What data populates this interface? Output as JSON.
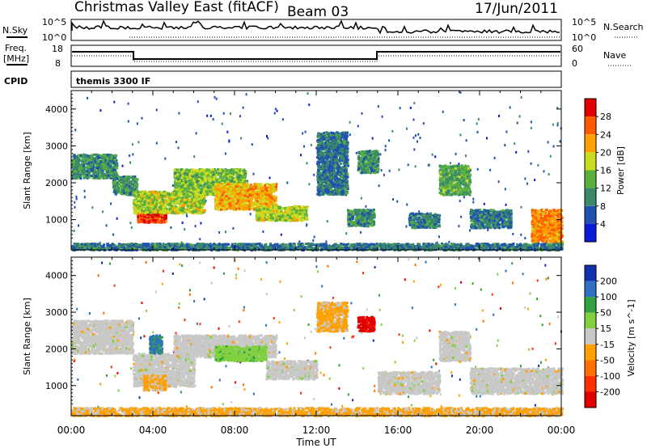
{
  "header": {
    "station": "Christmas Valley East (fitACF)",
    "beam": "Beam 03",
    "date": "17/Jun/2011"
  },
  "noise_panel": {
    "left_label": "N.Sky",
    "left_ticks": [
      "10^5",
      "10^0"
    ],
    "right_label": "N.Search",
    "right_ticks": [
      "10^5",
      "10^0"
    ]
  },
  "freq_panel": {
    "left_label_1": "Freq.",
    "left_label_2": "[MHz]",
    "left_ticks": [
      "18",
      "8"
    ],
    "right_label": "Nave",
    "right_ticks": [
      "60",
      "0"
    ]
  },
  "cpid": {
    "label": "CPID",
    "text": "themis 3300 IF"
  },
  "colors": {
    "power_scale": [
      "#0a18d8",
      "#2050b0",
      "#3a8a6a",
      "#58b040",
      "#c8dc20",
      "#ffa000",
      "#ff5a00",
      "#e00000"
    ],
    "velocity_scale": [
      "#1030b0",
      "#3070c0",
      "#30a040",
      "#80d040",
      "#c8c8c8",
      "#ffa000",
      "#ff7000",
      "#ff3000",
      "#e00000"
    ]
  },
  "chart_data": [
    {
      "type": "heatmap",
      "panel": "power",
      "ylabel": "Slant Range [km]",
      "yticks": [
        "1000",
        "2000",
        "3000",
        "4000"
      ],
      "ylim": [
        180,
        4500
      ],
      "xlim": [
        0,
        24
      ],
      "colorbar_label": "Power [dB]",
      "colorbar_ticks": [
        "4",
        "8",
        "12",
        "16",
        "20",
        "24",
        "28"
      ],
      "colorbar_range": [
        0,
        30
      ],
      "features": [
        {
          "t0": 0.0,
          "t1": 2.2,
          "r0": 2150,
          "r1": 2800,
          "value": 10
        },
        {
          "t0": 2.0,
          "t1": 3.2,
          "r0": 1700,
          "r1": 2200,
          "value": 10
        },
        {
          "t0": 3.2,
          "t1": 4.6,
          "r0": 950,
          "r1": 1300,
          "value": 26
        },
        {
          "t0": 3.0,
          "t1": 6.5,
          "r0": 1200,
          "r1": 1800,
          "value": 16
        },
        {
          "t0": 5.0,
          "t1": 8.5,
          "r0": 1700,
          "r1": 2400,
          "value": 14
        },
        {
          "t0": 7.0,
          "t1": 10.0,
          "r0": 1300,
          "r1": 2000,
          "value": 20
        },
        {
          "t0": 9.0,
          "t1": 11.5,
          "r0": 1000,
          "r1": 1400,
          "value": 16
        },
        {
          "t0": 12.0,
          "t1": 13.5,
          "r0": 1700,
          "r1": 3400,
          "value": 8
        },
        {
          "t0": 13.5,
          "t1": 14.8,
          "r0": 850,
          "r1": 1300,
          "value": 10
        },
        {
          "t0": 14.0,
          "t1": 15.0,
          "r0": 2300,
          "r1": 2900,
          "value": 10
        },
        {
          "t0": 16.5,
          "t1": 18.0,
          "r0": 800,
          "r1": 1200,
          "value": 9
        },
        {
          "t0": 18.0,
          "t1": 19.5,
          "r0": 1700,
          "r1": 2500,
          "value": 12
        },
        {
          "t0": 19.5,
          "t1": 21.5,
          "r0": 800,
          "r1": 1300,
          "value": 8
        },
        {
          "t0": 22.5,
          "t1": 24.0,
          "r0": 400,
          "r1": 1300,
          "value": 22
        },
        {
          "t0": 0.0,
          "t1": 24.0,
          "r0": 200,
          "r1": 380,
          "value": 8
        }
      ]
    },
    {
      "type": "heatmap",
      "panel": "velocity",
      "ylabel": "Slant Range [km]",
      "yticks": [
        "1000",
        "2000",
        "3000",
        "4000"
      ],
      "ylim": [
        180,
        4500
      ],
      "xlim": [
        0,
        24
      ],
      "xticks": [
        "00:00",
        "04:00",
        "08:00",
        "12:00",
        "16:00",
        "20:00",
        "00:00"
      ],
      "xlabel": "Time UT",
      "colorbar_label": "Velocity [m s^-1]",
      "colorbar_ticks": [
        "200",
        "100",
        "50",
        "15",
        "-15",
        "-50",
        "-100",
        "-200"
      ],
      "colorbar_range": [
        -250,
        250
      ],
      "features": [
        {
          "t0": 0.0,
          "t1": 3.0,
          "r0": 1900,
          "r1": 2800,
          "value": 0
        },
        {
          "t0": 3.0,
          "t1": 6.0,
          "r0": 1000,
          "r1": 1900,
          "value": 0
        },
        {
          "t0": 3.5,
          "t1": 4.6,
          "r0": 900,
          "r1": 1300,
          "value": -40
        },
        {
          "t0": 3.8,
          "t1": 4.4,
          "r0": 1900,
          "r1": 2400,
          "value": 150
        },
        {
          "t0": 5.0,
          "t1": 10.0,
          "r0": 1800,
          "r1": 2400,
          "value": 0
        },
        {
          "t0": 7.0,
          "t1": 9.5,
          "r0": 1700,
          "r1": 2100,
          "value": 60
        },
        {
          "t0": 9.5,
          "t1": 12.0,
          "r0": 1200,
          "r1": 1700,
          "value": 0
        },
        {
          "t0": 12.0,
          "t1": 13.5,
          "r0": 2500,
          "r1": 3300,
          "value": -40
        },
        {
          "t0": 14.0,
          "t1": 14.8,
          "r0": 2500,
          "r1": 2900,
          "value": -220
        },
        {
          "t0": 15.0,
          "t1": 18.0,
          "r0": 800,
          "r1": 1400,
          "value": 0
        },
        {
          "t0": 18.0,
          "t1": 19.5,
          "r0": 1700,
          "r1": 2500,
          "value": 0
        },
        {
          "t0": 19.5,
          "t1": 24.0,
          "r0": 800,
          "r1": 1500,
          "value": 0
        },
        {
          "t0": 0.0,
          "t1": 24.0,
          "r0": 200,
          "r1": 420,
          "value": -40
        }
      ]
    }
  ]
}
